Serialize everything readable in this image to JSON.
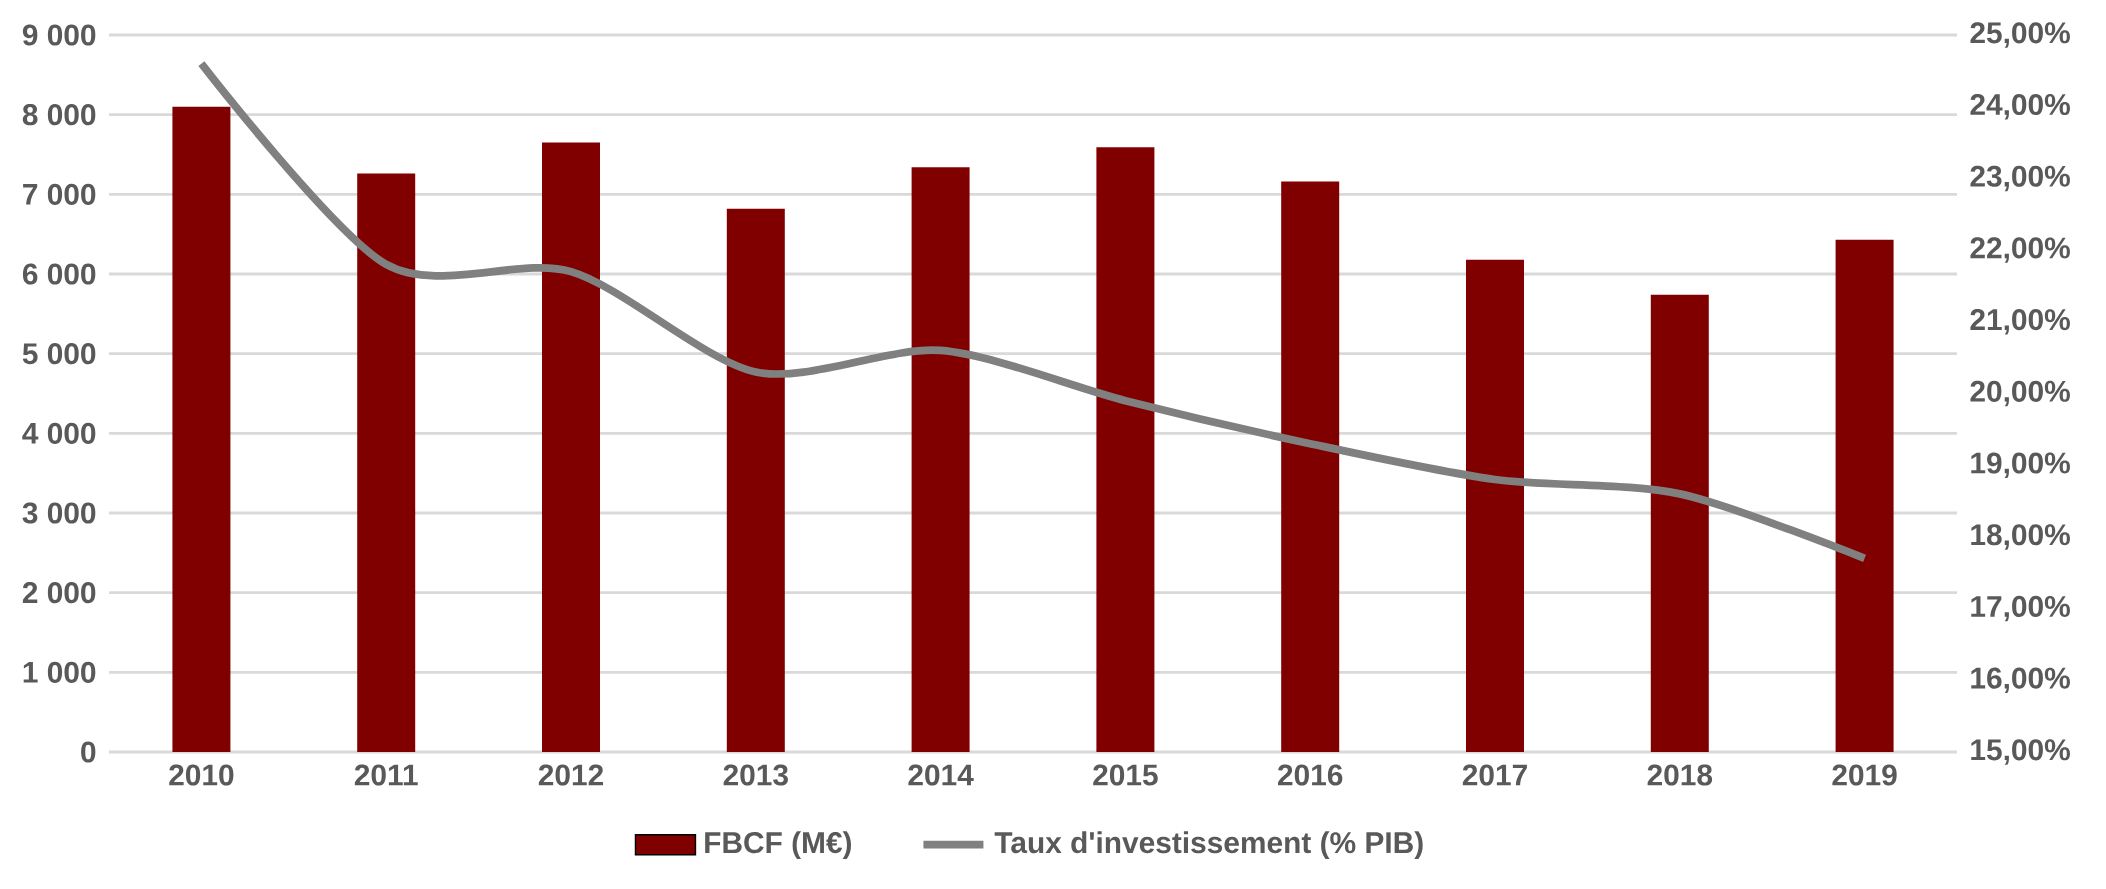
{
  "chart_data": {
    "type": "bar",
    "categories": [
      "2010",
      "2011",
      "2012",
      "2013",
      "2014",
      "2015",
      "2016",
      "2017",
      "2018",
      "2019"
    ],
    "series": [
      {
        "name": "FBCF (M€)",
        "color": "#800000",
        "values": [
          8100,
          7260,
          7650,
          6820,
          7340,
          7590,
          7160,
          6180,
          5740,
          6430
        ]
      },
      {
        "name": "Taux d'investissement (% PIB)",
        "type": "line",
        "axis": "y2",
        "color": "#808080",
        "values": [
          24.6,
          21.8,
          21.7,
          20.3,
          20.6,
          19.9,
          19.3,
          18.8,
          18.6,
          17.7
        ]
      }
    ],
    "ylim": [
      0,
      9000
    ],
    "yticks": [
      0,
      {
        "value": 1000,
        "label": "1 000"
      },
      {
        "value": 2000,
        "label": "2 000"
      },
      {
        "value": 3000,
        "label": "3 000"
      },
      {
        "value": 4000,
        "label": "4 000"
      },
      {
        "value": 5000,
        "label": "5 000"
      },
      {
        "value": 6000,
        "label": "6 000"
      },
      {
        "value": 7000,
        "label": "7 000"
      },
      {
        "value": 8000,
        "label": "8 000"
      },
      {
        "value": 9000,
        "label": "9 000"
      }
    ],
    "y2lim": [
      15,
      25
    ],
    "y2ticks": [
      {
        "value": 15,
        "label": "15,00%"
      },
      {
        "value": 16,
        "label": "16,00%"
      },
      {
        "value": 17,
        "label": "17,00%"
      },
      {
        "value": 18,
        "label": "18,00%"
      },
      {
        "value": 19,
        "label": "19,00%"
      },
      {
        "value": 20,
        "label": "20,00%"
      },
      {
        "value": 21,
        "label": "21,00%"
      },
      {
        "value": 22,
        "label": "22,00%"
      },
      {
        "value": 23,
        "label": "23,00%"
      },
      {
        "value": 24,
        "label": "24,00%"
      },
      {
        "value": 25,
        "label": "25,00%"
      }
    ],
    "grid": "y",
    "legend": "bottom"
  }
}
